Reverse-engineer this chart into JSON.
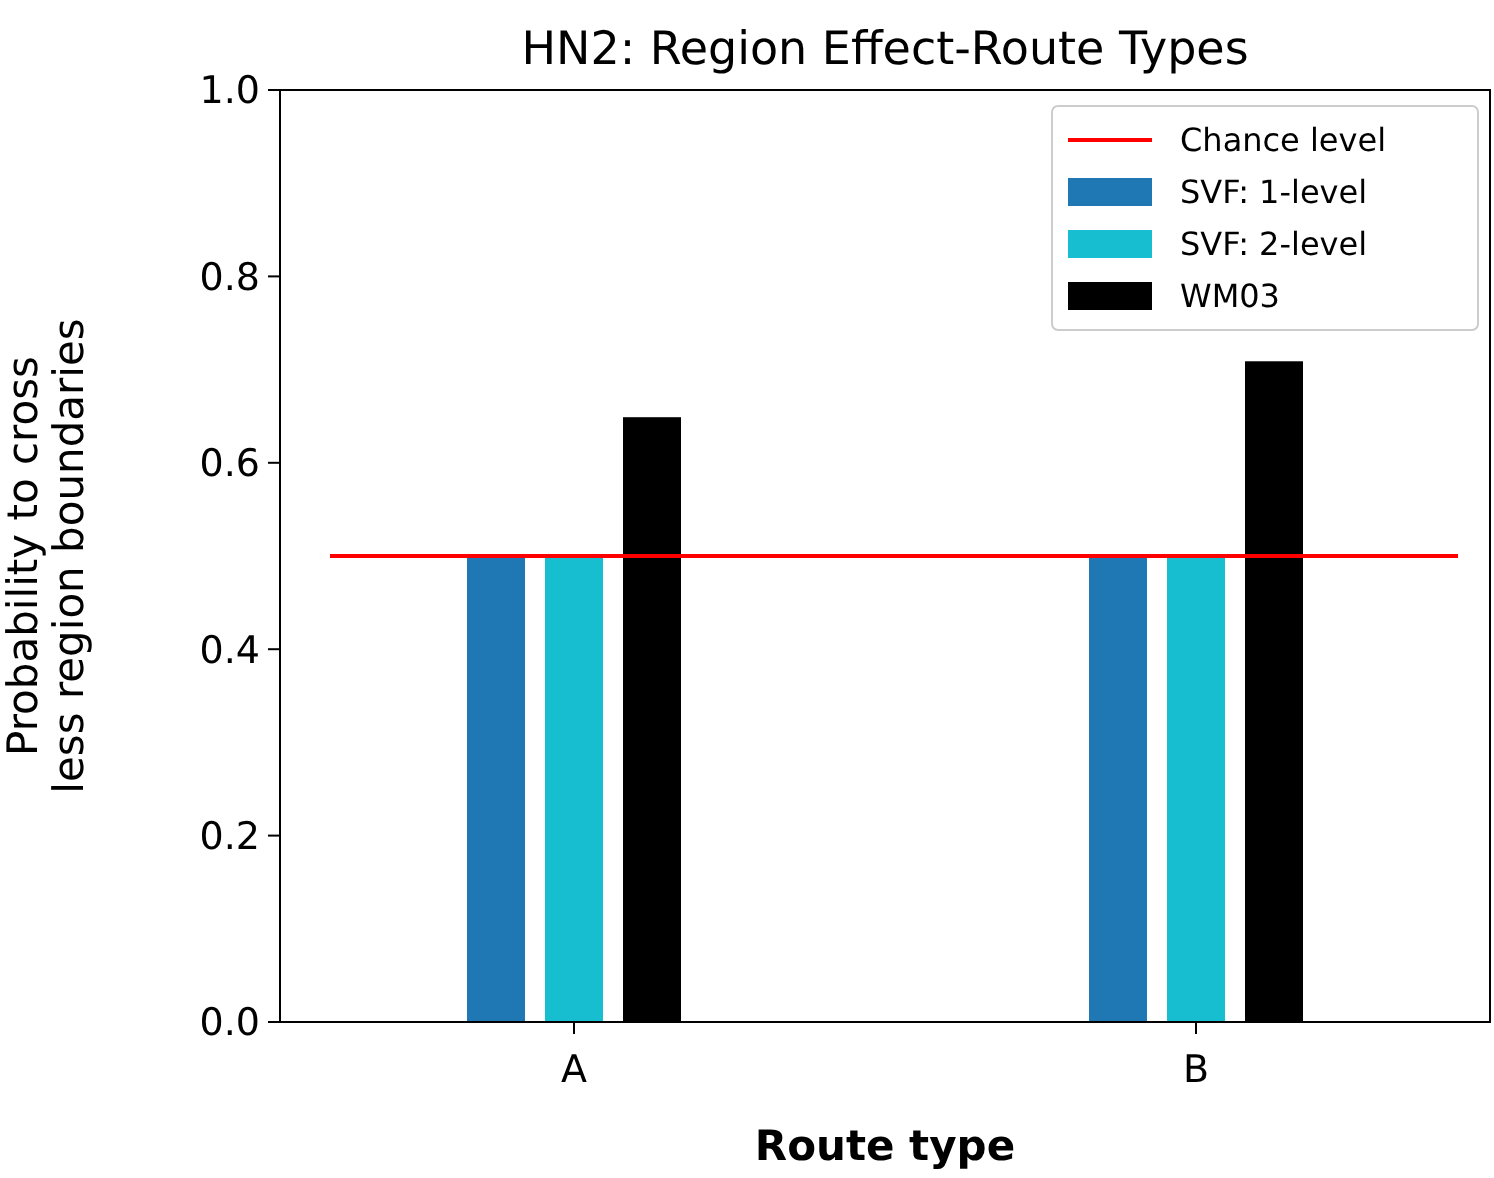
{
  "chart_data": {
    "type": "bar",
    "title": "HN2: Region Effect-Route Types",
    "xlabel": "Route type",
    "ylabel": "Probability to cross\nless region boundaries",
    "categories": [
      "A",
      "B"
    ],
    "series": [
      {
        "name": "SVF: 1-level",
        "color": "#1f77b4",
        "values": [
          0.5,
          0.5
        ]
      },
      {
        "name": "SVF: 2-level",
        "color": "#17becf",
        "values": [
          0.5,
          0.5
        ]
      },
      {
        "name": "WM03",
        "color": "#000000",
        "values": [
          0.65,
          0.71
        ]
      }
    ],
    "ylim": [
      0,
      1
    ],
    "yticks": [
      {
        "value": 0,
        "label": "0.0"
      },
      {
        "value": 0.2,
        "label": "0.2"
      },
      {
        "value": 0.4,
        "label": "0.4"
      },
      {
        "value": 0.6,
        "label": "0.6"
      },
      {
        "value": 0.8,
        "label": "0.8"
      },
      {
        "value": 1,
        "label": "1.0"
      }
    ],
    "ref_lines": [
      {
        "axis": "y",
        "value": 0.5,
        "label": "Chance level",
        "color": "#ff0000"
      }
    ],
    "legend": "top right",
    "grid": false
  }
}
